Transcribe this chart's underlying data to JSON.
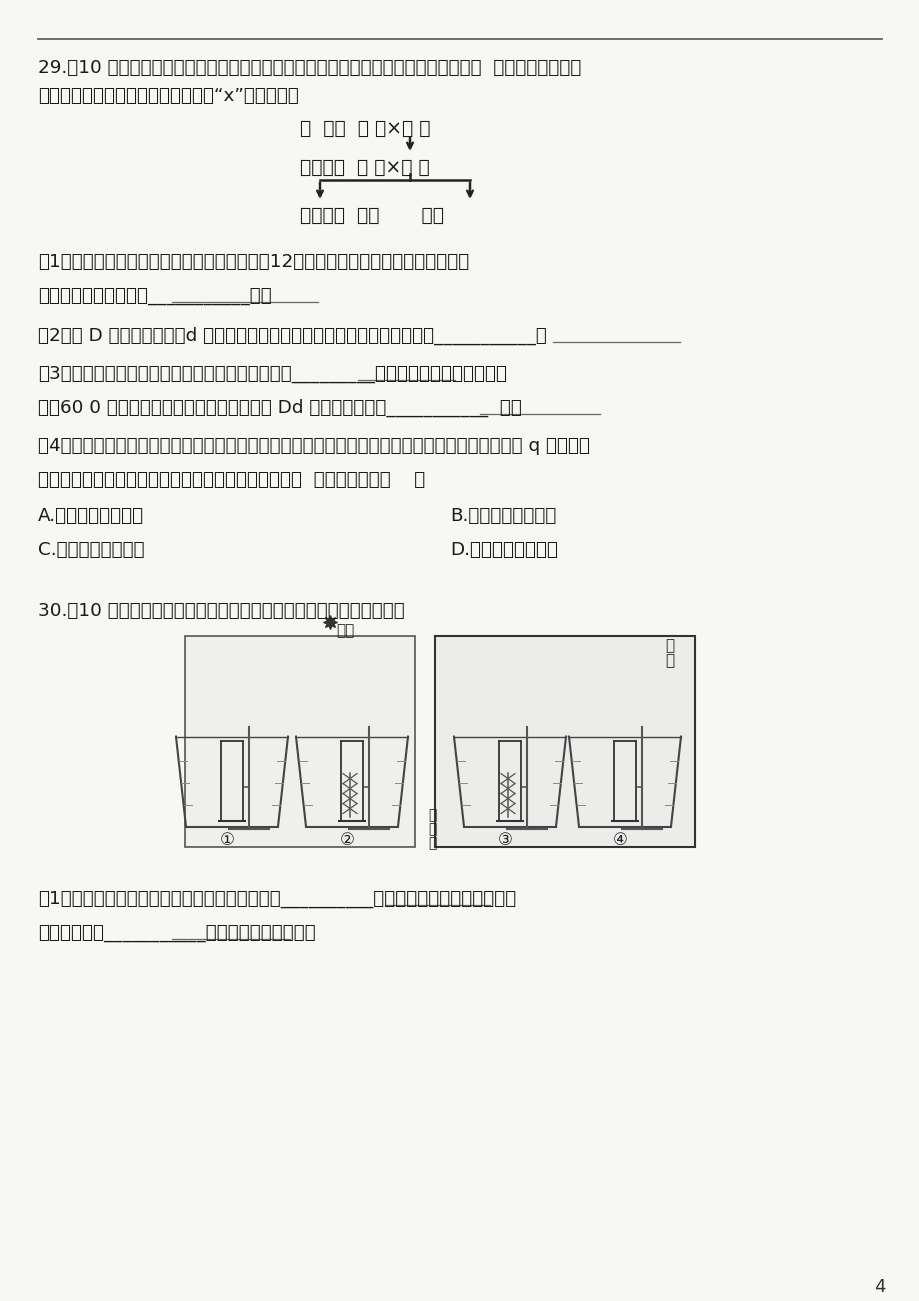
{
  "bg_color": "#f7f7f4",
  "text_color": "#1a1a1a",
  "page_number": "4",
  "q29_title": "29.（10 分）下图是某生物科研小组选用纯种高茎水稻和纯种矮茎水稻作亲本进行杂交  实验的图解，请你",
  "q29_title2": "利用所学知识分析回答下列问题。（“x”表示杂交）",
  "diagram_p_label": "亲  代：  高 茎×矮 茎",
  "diagram_f1_label": "子一代：  高 茎×高 茎",
  "diagram_f2_label": "子二代：  高茎       矮茎",
  "q29_sub1": "（1）已知亲代高茎水稻体细胞中染色体数目为12对，则子二代中矮茎个体产生的一个",
  "q29_sub1b": "卵细胞内染色体数目为___________条。",
  "q29_sub2": "（2）若 D 表示显性基因，d 表示隐性基因，则子一代高茎水稻的基因组成是___________。",
  "q29_sub3": "（3）子二代的所有个体中存在的基因组成类型共有_________种；若子二代产生的高茎植",
  "q29_sub3b": "株入60 0 株且完全存活，则其中基因组成是 Dd 的高茎个体约有___________  株。",
  "q29_sub4": "（4）因子二代的高茎水稻高产但易倒伏，矮茎水稻低产但抗倒伏，于是该科研小组通过射线处理子 q 代种子，",
  "q29_sub4b": "并从中获得了高产抗倒伏的水稻新品种，则此新品种呼  现的变异属于（    ）",
  "q29_optA": "A.有利的可遗传变异",
  "q29_optB": "B.不利的可遗传变异",
  "q29_optC": "C.有利的不遗传变异",
  "q29_optD": "D.不利的不遗传变异",
  "q30_title": "30.（10 分）根据某生物兴趣小组设计的实验装置图，回答下列问题。",
  "q30_sub1": "（1）若要探究植物光合作用需要光，应将上图中__________两实验装置作为一组对照，预",
  "q30_sub1b": "期实验现象为___________号试管内能产生氧气。"
}
